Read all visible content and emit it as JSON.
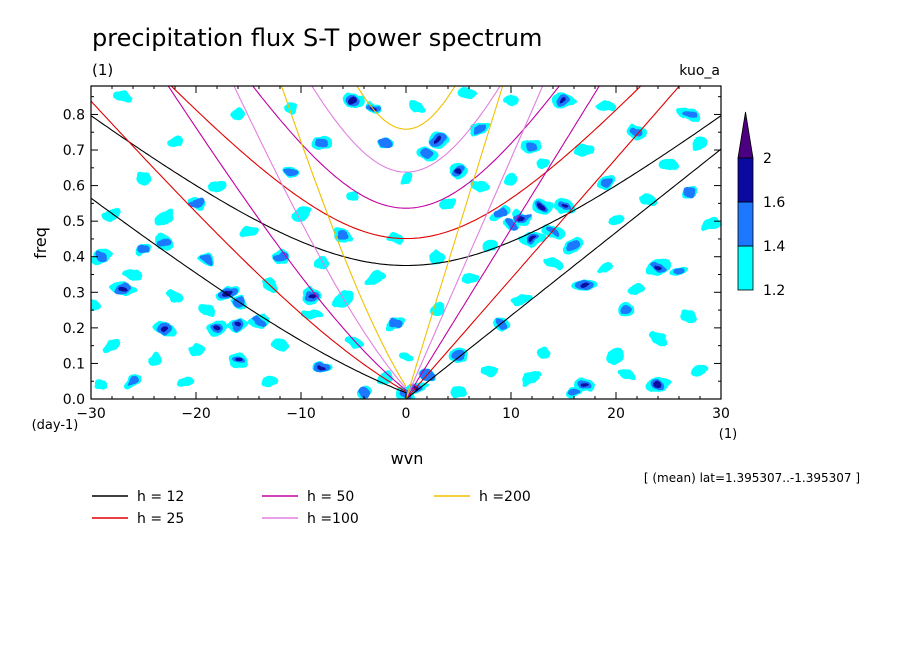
{
  "chart_data": {
    "type": "heatmap",
    "title": "precipitation flux S-T power spectrum",
    "subtitle": "(1)",
    "experiment": "kuo_a",
    "xlabel": "wvn",
    "xunit": "(1)",
    "ylabel": "freq",
    "yunit": "(day-1)",
    "xlim": [
      -30,
      30
    ],
    "ylim": [
      0,
      0.88
    ],
    "xticks": [
      -30,
      -20,
      -10,
      0,
      10,
      20,
      30
    ],
    "yticks": [
      0.0,
      0.1,
      0.2,
      0.3,
      0.4,
      0.5,
      0.6,
      0.7,
      0.8
    ],
    "ytick_labels": [
      "0.0",
      "0.1",
      "0.2",
      "0.3",
      "0.4",
      "0.5",
      "0.6",
      "0.7",
      "0.8"
    ],
    "colorbar": {
      "levels": [
        "1.2",
        "1.4",
        "1.6",
        "2"
      ],
      "colors": [
        "#00ffff",
        "#1e78ff",
        "#0a0aa0",
        "#4b0082"
      ],
      "extend": "max"
    },
    "annotation": "[ (mean) lat=1.395307..-1.395307 ]",
    "dispersion_curves": [
      {
        "label": "h = 12",
        "h": 12,
        "color": "#000000"
      },
      {
        "label": "h = 25",
        "h": 25,
        "color": "#e00000"
      },
      {
        "label": "h = 50",
        "h": 50,
        "color": "#c000a0"
      },
      {
        "label": "h =100",
        "h": 100,
        "color": "#e080e0"
      },
      {
        "label": "h =200",
        "h": 200,
        "color": "#f0c000"
      }
    ],
    "spectral_peaks": [
      {
        "x": 11,
        "y": 0.51,
        "level": 2
      },
      {
        "x": 13,
        "y": 0.54,
        "level": 2
      },
      {
        "x": 12,
        "y": 0.45,
        "level": 2
      },
      {
        "x": 15,
        "y": 0.54,
        "level": 2
      },
      {
        "x": 3,
        "y": 0.73,
        "level": 2
      },
      {
        "x": 5,
        "y": 0.64,
        "level": 2
      },
      {
        "x": 1,
        "y": 0.03,
        "level": 2
      },
      {
        "x": 17,
        "y": 0.04,
        "level": 2
      },
      {
        "x": 24,
        "y": 0.04,
        "level": 2
      },
      {
        "x": -23,
        "y": 0.2,
        "level": 2
      },
      {
        "x": -18,
        "y": 0.2,
        "level": 2
      },
      {
        "x": -16,
        "y": 0.21,
        "level": 2
      },
      {
        "x": -8,
        "y": 0.09,
        "level": 2
      },
      {
        "x": -16,
        "y": 0.11,
        "level": 2
      },
      {
        "x": -17,
        "y": 0.3,
        "level": 2
      },
      {
        "x": -27,
        "y": 0.31,
        "level": 2
      },
      {
        "x": -5,
        "y": 0.84,
        "level": 2
      },
      {
        "x": -3,
        "y": 0.82,
        "level": 2
      },
      {
        "x": 15,
        "y": 0.84,
        "level": 2
      },
      {
        "x": 24,
        "y": 0.37,
        "level": 2
      },
      {
        "x": -9,
        "y": 0.29,
        "level": 2
      },
      {
        "x": 17,
        "y": 0.32,
        "level": 2
      },
      {
        "x": 9,
        "y": 0.52,
        "level": 1
      },
      {
        "x": 10,
        "y": 0.49,
        "level": 1
      },
      {
        "x": 14,
        "y": 0.47,
        "level": 1
      },
      {
        "x": 16,
        "y": 0.43,
        "level": 1
      },
      {
        "x": 2,
        "y": 0.69,
        "level": 1
      },
      {
        "x": 7,
        "y": 0.76,
        "level": 1
      },
      {
        "x": 12,
        "y": 0.71,
        "level": 1
      },
      {
        "x": 0,
        "y": 0.01,
        "level": 1
      },
      {
        "x": 2,
        "y": 0.07,
        "level": 1
      },
      {
        "x": 5,
        "y": 0.12,
        "level": 1
      },
      {
        "x": -25,
        "y": 0.42,
        "level": 1
      },
      {
        "x": -23,
        "y": 0.44,
        "level": 1
      },
      {
        "x": -19,
        "y": 0.39,
        "level": 1
      },
      {
        "x": -29,
        "y": 0.4,
        "level": 1
      },
      {
        "x": -16,
        "y": 0.27,
        "level": 1
      },
      {
        "x": -14,
        "y": 0.22,
        "level": 1
      },
      {
        "x": -6,
        "y": 0.46,
        "level": 1
      },
      {
        "x": -8,
        "y": 0.72,
        "level": 1
      },
      {
        "x": 27,
        "y": 0.8,
        "level": 1
      },
      {
        "x": 27,
        "y": 0.58,
        "level": 1
      },
      {
        "x": 26,
        "y": 0.36,
        "level": 1
      },
      {
        "x": 16,
        "y": 0.02,
        "level": 1
      },
      {
        "x": -4,
        "y": 0.02,
        "level": 1
      },
      {
        "x": -26,
        "y": 0.05,
        "level": 1
      },
      {
        "x": -1,
        "y": 0.21,
        "level": 1
      },
      {
        "x": -2,
        "y": 0.72,
        "level": 1
      },
      {
        "x": 19,
        "y": 0.61,
        "level": 1
      },
      {
        "x": 22,
        "y": 0.75,
        "level": 1
      },
      {
        "x": 9,
        "y": 0.21,
        "level": 1
      },
      {
        "x": 21,
        "y": 0.25,
        "level": 1
      },
      {
        "x": -20,
        "y": 0.55,
        "level": 1
      },
      {
        "x": -11,
        "y": 0.64,
        "level": 1
      },
      {
        "x": -12,
        "y": 0.4,
        "level": 1
      },
      {
        "x": -26,
        "y": 0.35,
        "level": 0
      },
      {
        "x": -22,
        "y": 0.29,
        "level": 0
      },
      {
        "x": -19,
        "y": 0.25,
        "level": 0
      },
      {
        "x": -13,
        "y": 0.32,
        "level": 0
      },
      {
        "x": -9,
        "y": 0.24,
        "level": 0
      },
      {
        "x": -6,
        "y": 0.28,
        "level": 0
      },
      {
        "x": -3,
        "y": 0.34,
        "level": 0
      },
      {
        "x": -28,
        "y": 0.15,
        "level": 0
      },
      {
        "x": -24,
        "y": 0.11,
        "level": 0
      },
      {
        "x": -20,
        "y": 0.14,
        "level": 0
      },
      {
        "x": -12,
        "y": 0.15,
        "level": 0
      },
      {
        "x": -5,
        "y": 0.16,
        "level": 0
      },
      {
        "x": 0,
        "y": 0.12,
        "level": 0
      },
      {
        "x": 3,
        "y": 0.25,
        "level": 0
      },
      {
        "x": 6,
        "y": 0.34,
        "level": 0
      },
      {
        "x": 8,
        "y": 0.43,
        "level": 0
      },
      {
        "x": 4,
        "y": 0.55,
        "level": 0
      },
      {
        "x": 0,
        "y": 0.62,
        "level": 0
      },
      {
        "x": -5,
        "y": 0.57,
        "level": 0
      },
      {
        "x": -10,
        "y": 0.52,
        "level": 0
      },
      {
        "x": -15,
        "y": 0.47,
        "level": 0
      },
      {
        "x": -18,
        "y": 0.6,
        "level": 0
      },
      {
        "x": -25,
        "y": 0.62,
        "level": 0
      },
      {
        "x": -28,
        "y": 0.52,
        "level": 0
      },
      {
        "x": -22,
        "y": 0.72,
        "level": 0
      },
      {
        "x": -16,
        "y": 0.8,
        "level": 0
      },
      {
        "x": -11,
        "y": 0.82,
        "level": 0
      },
      {
        "x": -27,
        "y": 0.85,
        "level": 0
      },
      {
        "x": -1,
        "y": 0.45,
        "level": 0
      },
      {
        "x": 3,
        "y": 0.4,
        "level": 0
      },
      {
        "x": 7,
        "y": 0.6,
        "level": 0
      },
      {
        "x": 10,
        "y": 0.62,
        "level": 0
      },
      {
        "x": 13,
        "y": 0.66,
        "level": 0
      },
      {
        "x": 17,
        "y": 0.7,
        "level": 0
      },
      {
        "x": 20,
        "y": 0.5,
        "level": 0
      },
      {
        "x": 23,
        "y": 0.56,
        "level": 0
      },
      {
        "x": 29,
        "y": 0.49,
        "level": 0
      },
      {
        "x": 25,
        "y": 0.66,
        "level": 0
      },
      {
        "x": 28,
        "y": 0.72,
        "level": 0
      },
      {
        "x": 19,
        "y": 0.82,
        "level": 0
      },
      {
        "x": 10,
        "y": 0.84,
        "level": 0
      },
      {
        "x": 14,
        "y": 0.38,
        "level": 0
      },
      {
        "x": 19,
        "y": 0.37,
        "level": 0
      },
      {
        "x": 22,
        "y": 0.31,
        "level": 0
      },
      {
        "x": 27,
        "y": 0.23,
        "level": 0
      },
      {
        "x": 24,
        "y": 0.17,
        "level": 0
      },
      {
        "x": 20,
        "y": 0.12,
        "level": 0
      },
      {
        "x": 13,
        "y": 0.13,
        "level": 0
      },
      {
        "x": 11,
        "y": 0.28,
        "level": 0
      },
      {
        "x": 12,
        "y": 0.06,
        "level": 0
      },
      {
        "x": 8,
        "y": 0.08,
        "level": 0
      },
      {
        "x": 28,
        "y": 0.08,
        "level": 0
      },
      {
        "x": -30,
        "y": 0.26,
        "level": 0
      },
      {
        "x": -29,
        "y": 0.04,
        "level": 0
      },
      {
        "x": -21,
        "y": 0.05,
        "level": 0
      },
      {
        "x": -13,
        "y": 0.05,
        "level": 0
      },
      {
        "x": -2,
        "y": 0.06,
        "level": 0
      },
      {
        "x": 5,
        "y": 0.02,
        "level": 0
      },
      {
        "x": 21,
        "y": 0.07,
        "level": 0
      },
      {
        "x": -8,
        "y": 0.38,
        "level": 0
      },
      {
        "x": -23,
        "y": 0.51,
        "level": 0
      },
      {
        "x": 1,
        "y": 0.82,
        "level": 0
      },
      {
        "x": 6,
        "y": 0.86,
        "level": 0
      }
    ]
  }
}
